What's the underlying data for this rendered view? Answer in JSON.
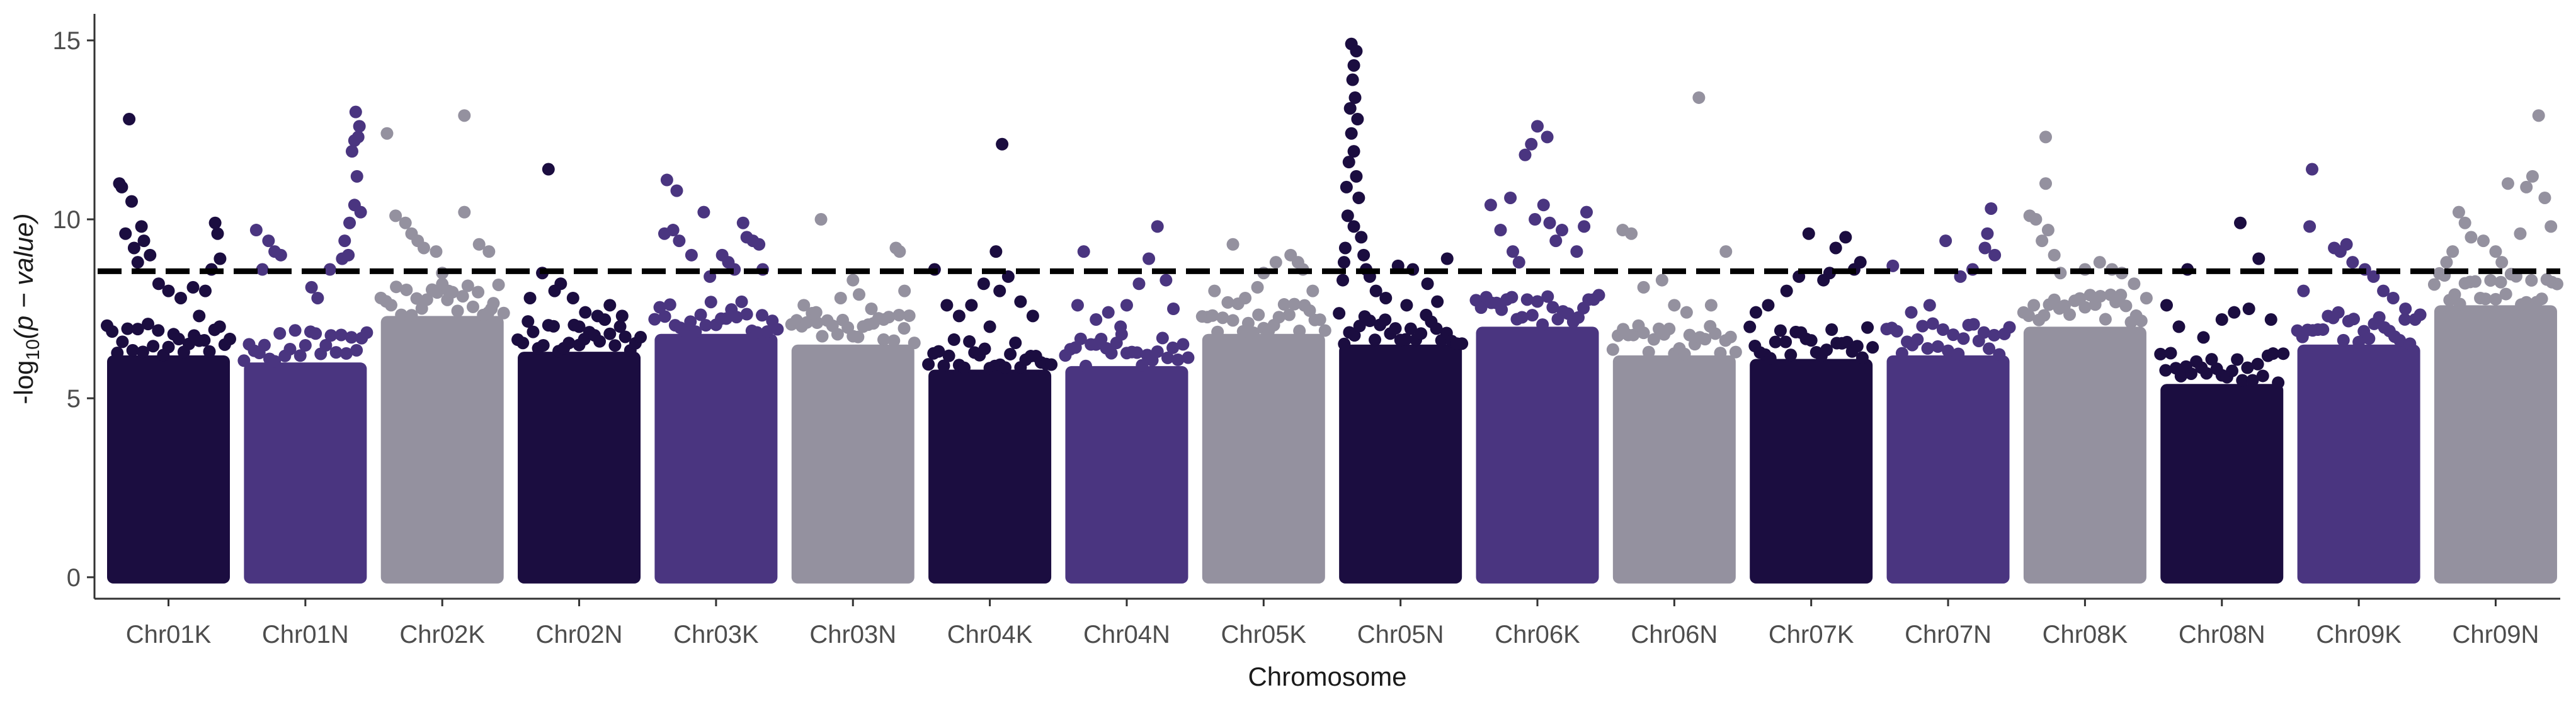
{
  "chart_data": {
    "type": "scatter",
    "subtype": "manhattan",
    "title": "",
    "xlabel": "Chromosome",
    "ylabel": {
      "prefix": "-log",
      "subscript": "10",
      "expression": "(p − value)"
    },
    "ylim": [
      -0.6,
      15.6
    ],
    "yticks": [
      0,
      5,
      10,
      15
    ],
    "threshold": 8.55,
    "threshold_style": "dashed",
    "grid": false,
    "legend": "none",
    "palette": [
      "#1b0d40",
      "#4a3580",
      "#94919f"
    ],
    "threshold_color": "#000000",
    "categories": [
      "Chr01K",
      "Chr01N",
      "Chr02K",
      "Chr02N",
      "Chr03K",
      "Chr03N",
      "Chr04K",
      "Chr04N",
      "Chr05K",
      "Chr05N",
      "Chr06K",
      "Chr06N",
      "Chr07K",
      "Chr07N",
      "Chr08K",
      "Chr08N",
      "Chr09K",
      "Chr09N"
    ],
    "series": [
      {
        "category": "Chr01K",
        "color_index": 0,
        "dense_top": 6.2,
        "points": [
          [
            0.1,
            11.0
          ],
          [
            0.12,
            10.9
          ],
          [
            0.2,
            10.5
          ],
          [
            0.15,
            9.6
          ],
          [
            0.22,
            9.2
          ],
          [
            0.28,
            9.8
          ],
          [
            0.3,
            9.4
          ],
          [
            0.35,
            9.0
          ],
          [
            0.25,
            8.8
          ],
          [
            0.42,
            8.2
          ],
          [
            0.5,
            8.0
          ],
          [
            0.6,
            7.8
          ],
          [
            0.7,
            8.1
          ],
          [
            0.8,
            8.0
          ],
          [
            0.88,
            9.9
          ],
          [
            0.9,
            9.6
          ],
          [
            0.92,
            8.9
          ],
          [
            0.85,
            8.6
          ],
          [
            0.75,
            7.3
          ],
          [
            0.18,
            12.8
          ]
        ]
      },
      {
        "category": "Chr01N",
        "color_index": 1,
        "dense_top": 6.0,
        "points": [
          [
            0.1,
            9.7
          ],
          [
            0.2,
            9.4
          ],
          [
            0.25,
            9.1
          ],
          [
            0.3,
            9.0
          ],
          [
            0.15,
            8.6
          ],
          [
            0.55,
            8.1
          ],
          [
            0.6,
            7.8
          ],
          [
            0.7,
            8.6
          ],
          [
            0.8,
            8.9
          ],
          [
            0.82,
            9.4
          ],
          [
            0.86,
            9.9
          ],
          [
            0.9,
            10.4
          ],
          [
            0.92,
            11.2
          ],
          [
            0.9,
            12.2
          ],
          [
            0.93,
            12.3
          ],
          [
            0.94,
            12.6
          ],
          [
            0.91,
            13.0
          ],
          [
            0.88,
            11.9
          ],
          [
            0.95,
            10.2
          ],
          [
            0.85,
            9.0
          ]
        ]
      },
      {
        "category": "Chr02K",
        "color_index": 2,
        "dense_top": 7.3,
        "points": [
          [
            0.05,
            12.4
          ],
          [
            0.68,
            12.9
          ],
          [
            0.12,
            10.1
          ],
          [
            0.2,
            9.9
          ],
          [
            0.25,
            9.6
          ],
          [
            0.35,
            9.2
          ],
          [
            0.45,
            9.1
          ],
          [
            0.5,
            8.5
          ],
          [
            0.68,
            10.2
          ],
          [
            0.8,
            9.3
          ],
          [
            0.88,
            9.1
          ],
          [
            0.3,
            9.4
          ],
          [
            0.55,
            8.0
          ],
          [
            0.9,
            7.5
          ]
        ]
      },
      {
        "category": "Chr02N",
        "color_index": 0,
        "dense_top": 6.3,
        "points": [
          [
            0.25,
            11.4
          ],
          [
            0.2,
            8.5
          ],
          [
            0.35,
            8.2
          ],
          [
            0.3,
            8.0
          ],
          [
            0.1,
            7.8
          ],
          [
            0.45,
            7.8
          ],
          [
            0.55,
            7.4
          ],
          [
            0.65,
            7.3
          ],
          [
            0.75,
            7.6
          ],
          [
            0.85,
            7.3
          ],
          [
            0.5,
            7.0
          ]
        ]
      },
      {
        "category": "Chr03K",
        "color_index": 1,
        "dense_top": 6.8,
        "points": [
          [
            0.1,
            11.1
          ],
          [
            0.18,
            10.8
          ],
          [
            0.4,
            10.2
          ],
          [
            0.08,
            9.6
          ],
          [
            0.15,
            9.7
          ],
          [
            0.2,
            9.4
          ],
          [
            0.3,
            9.0
          ],
          [
            0.55,
            9.0
          ],
          [
            0.6,
            8.8
          ],
          [
            0.72,
            9.9
          ],
          [
            0.75,
            9.5
          ],
          [
            0.8,
            9.4
          ],
          [
            0.85,
            9.3
          ],
          [
            0.88,
            8.6
          ],
          [
            0.65,
            8.6
          ],
          [
            0.45,
            8.4
          ]
        ]
      },
      {
        "category": "Chr03N",
        "color_index": 2,
        "dense_top": 6.5,
        "points": [
          [
            0.24,
            10.0
          ],
          [
            0.85,
            9.2
          ],
          [
            0.88,
            9.1
          ],
          [
            0.1,
            7.6
          ],
          [
            0.2,
            7.4
          ],
          [
            0.4,
            7.8
          ],
          [
            0.5,
            8.3
          ],
          [
            0.55,
            7.9
          ],
          [
            0.65,
            7.5
          ],
          [
            0.75,
            7.2
          ],
          [
            0.92,
            8.0
          ]
        ]
      },
      {
        "category": "Chr04K",
        "color_index": 0,
        "dense_top": 5.8,
        "points": [
          [
            0.6,
            12.1
          ],
          [
            0.55,
            9.1
          ],
          [
            0.05,
            8.6
          ],
          [
            0.15,
            7.6
          ],
          [
            0.25,
            7.3
          ],
          [
            0.35,
            7.6
          ],
          [
            0.45,
            8.2
          ],
          [
            0.58,
            8.0
          ],
          [
            0.65,
            8.4
          ],
          [
            0.75,
            7.7
          ],
          [
            0.85,
            7.3
          ],
          [
            0.5,
            7.0
          ]
        ]
      },
      {
        "category": "Chr04N",
        "color_index": 1,
        "dense_top": 5.9,
        "points": [
          [
            0.15,
            9.1
          ],
          [
            0.75,
            9.8
          ],
          [
            0.68,
            8.9
          ],
          [
            0.6,
            8.2
          ],
          [
            0.5,
            7.6
          ],
          [
            0.35,
            7.4
          ],
          [
            0.25,
            7.2
          ],
          [
            0.1,
            7.6
          ],
          [
            0.82,
            8.3
          ],
          [
            0.88,
            7.5
          ],
          [
            0.45,
            7.0
          ]
        ]
      },
      {
        "category": "Chr05K",
        "color_index": 2,
        "dense_top": 6.8,
        "points": [
          [
            0.25,
            9.3
          ],
          [
            0.5,
            8.5
          ],
          [
            0.6,
            8.8
          ],
          [
            0.72,
            9.0
          ],
          [
            0.78,
            8.8
          ],
          [
            0.82,
            8.6
          ],
          [
            0.1,
            8.0
          ],
          [
            0.35,
            7.8
          ],
          [
            0.45,
            8.1
          ],
          [
            0.9,
            8.0
          ]
        ]
      },
      {
        "category": "Chr05N",
        "color_index": 0,
        "dense_top": 6.5,
        "points": [
          [
            0.1,
            14.9
          ],
          [
            0.14,
            14.7
          ],
          [
            0.12,
            14.3
          ],
          [
            0.11,
            13.9
          ],
          [
            0.13,
            13.4
          ],
          [
            0.09,
            13.1
          ],
          [
            0.15,
            12.8
          ],
          [
            0.1,
            12.4
          ],
          [
            0.12,
            11.9
          ],
          [
            0.08,
            11.6
          ],
          [
            0.14,
            11.2
          ],
          [
            0.06,
            10.9
          ],
          [
            0.16,
            10.6
          ],
          [
            0.07,
            10.1
          ],
          [
            0.12,
            9.8
          ],
          [
            0.18,
            9.5
          ],
          [
            0.05,
            9.2
          ],
          [
            0.2,
            9.0
          ],
          [
            0.04,
            8.8
          ],
          [
            0.22,
            8.6
          ],
          [
            0.03,
            8.3
          ],
          [
            0.25,
            8.4
          ],
          [
            0.3,
            8.0
          ],
          [
            0.38,
            7.8
          ],
          [
            0.48,
            8.7
          ],
          [
            0.6,
            8.6
          ],
          [
            0.72,
            8.2
          ],
          [
            0.88,
            8.9
          ],
          [
            0.55,
            7.6
          ],
          [
            0.8,
            7.7
          ]
        ]
      },
      {
        "category": "Chr06K",
        "color_index": 1,
        "dense_top": 7.0,
        "points": [
          [
            0.12,
            10.4
          ],
          [
            0.2,
            9.7
          ],
          [
            0.28,
            10.6
          ],
          [
            0.4,
            11.8
          ],
          [
            0.45,
            12.1
          ],
          [
            0.5,
            12.6
          ],
          [
            0.58,
            12.3
          ],
          [
            0.55,
            10.4
          ],
          [
            0.48,
            10.0
          ],
          [
            0.6,
            9.9
          ],
          [
            0.65,
            9.4
          ],
          [
            0.7,
            9.7
          ],
          [
            0.82,
            9.1
          ],
          [
            0.9,
            10.2
          ],
          [
            0.88,
            9.8
          ],
          [
            0.3,
            9.1
          ],
          [
            0.35,
            8.8
          ]
        ]
      },
      {
        "category": "Chr06N",
        "color_index": 2,
        "dense_top": 6.2,
        "points": [
          [
            0.08,
            9.7
          ],
          [
            0.15,
            9.6
          ],
          [
            0.4,
            8.3
          ],
          [
            0.7,
            13.4
          ],
          [
            0.92,
            9.1
          ],
          [
            0.8,
            7.6
          ],
          [
            0.5,
            7.6
          ],
          [
            0.25,
            8.1
          ],
          [
            0.6,
            7.4
          ]
        ]
      },
      {
        "category": "Chr07K",
        "color_index": 0,
        "dense_top": 6.1,
        "points": [
          [
            0.48,
            9.6
          ],
          [
            0.65,
            8.5
          ],
          [
            0.7,
            9.2
          ],
          [
            0.78,
            9.5
          ],
          [
            0.9,
            8.8
          ],
          [
            0.85,
            8.6
          ],
          [
            0.6,
            8.3
          ],
          [
            0.4,
            8.4
          ],
          [
            0.3,
            8.0
          ],
          [
            0.15,
            7.6
          ],
          [
            0.05,
            7.4
          ]
        ]
      },
      {
        "category": "Chr07N",
        "color_index": 1,
        "dense_top": 6.2,
        "points": [
          [
            0.05,
            8.7
          ],
          [
            0.48,
            9.4
          ],
          [
            0.85,
            10.3
          ],
          [
            0.82,
            9.6
          ],
          [
            0.8,
            9.2
          ],
          [
            0.88,
            9.0
          ],
          [
            0.6,
            8.4
          ],
          [
            0.7,
            8.6
          ],
          [
            0.35,
            7.6
          ],
          [
            0.2,
            7.4
          ]
        ]
      },
      {
        "category": "Chr08K",
        "color_index": 2,
        "dense_top": 7.0,
        "points": [
          [
            0.18,
            12.3
          ],
          [
            0.18,
            11.0
          ],
          [
            0.05,
            10.1
          ],
          [
            0.1,
            10.0
          ],
          [
            0.2,
            9.7
          ],
          [
            0.15,
            9.4
          ],
          [
            0.25,
            9.0
          ],
          [
            0.3,
            8.5
          ],
          [
            0.5,
            8.6
          ],
          [
            0.62,
            8.8
          ],
          [
            0.72,
            8.6
          ],
          [
            0.8,
            8.5
          ],
          [
            0.9,
            8.2
          ]
        ]
      },
      {
        "category": "Chr08N",
        "color_index": 0,
        "dense_top": 5.4,
        "points": [
          [
            0.22,
            8.6
          ],
          [
            0.65,
            9.9
          ],
          [
            0.8,
            8.9
          ],
          [
            0.05,
            7.6
          ],
          [
            0.15,
            7.0
          ],
          [
            0.35,
            6.7
          ],
          [
            0.5,
            7.2
          ],
          [
            0.6,
            7.4
          ],
          [
            0.72,
            7.5
          ],
          [
            0.9,
            7.2
          ]
        ]
      },
      {
        "category": "Chr09K",
        "color_index": 1,
        "dense_top": 6.5,
        "points": [
          [
            0.12,
            11.4
          ],
          [
            0.1,
            9.8
          ],
          [
            0.3,
            9.2
          ],
          [
            0.35,
            9.1
          ],
          [
            0.4,
            9.3
          ],
          [
            0.45,
            8.8
          ],
          [
            0.55,
            8.6
          ],
          [
            0.62,
            8.4
          ],
          [
            0.7,
            8.0
          ],
          [
            0.78,
            7.8
          ],
          [
            0.88,
            7.5
          ],
          [
            0.05,
            8.0
          ]
        ]
      },
      {
        "category": "Chr09N",
        "color_index": 2,
        "dense_top": 7.6,
        "points": [
          [
            0.85,
            12.9
          ],
          [
            0.6,
            11.0
          ],
          [
            0.75,
            10.9
          ],
          [
            0.8,
            11.2
          ],
          [
            0.9,
            10.6
          ],
          [
            0.2,
            10.2
          ],
          [
            0.25,
            9.9
          ],
          [
            0.3,
            9.5
          ],
          [
            0.15,
            9.1
          ],
          [
            0.4,
            9.4
          ],
          [
            0.5,
            9.1
          ],
          [
            0.7,
            9.6
          ],
          [
            0.55,
            8.8
          ],
          [
            0.95,
            9.8
          ],
          [
            0.1,
            8.8
          ]
        ]
      }
    ]
  }
}
